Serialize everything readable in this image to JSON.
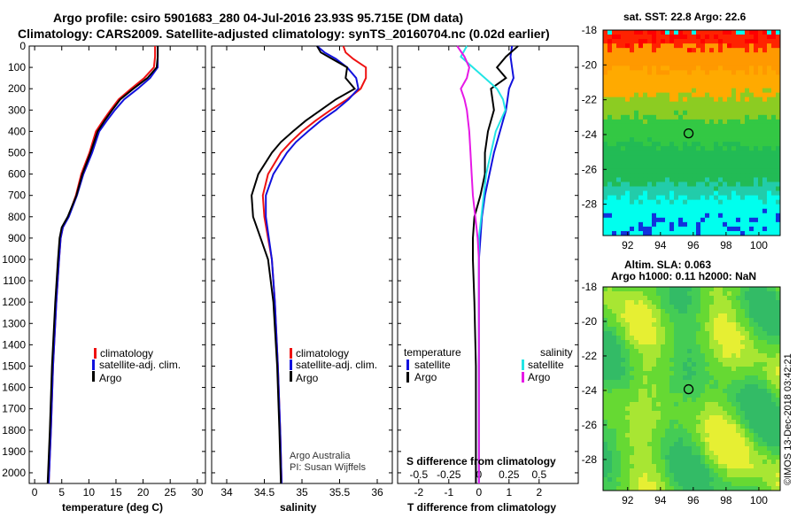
{
  "header": {
    "title_line1": "Argo profile: csiro 5901683_280 04-Jul-2016 23.93S 95.715E (DM data)",
    "title_line2": "Climatology: CARS2009. Satellite-adjusted climatology: synTS_20160704.nc (0.02d earlier)"
  },
  "colors": {
    "climatology": "#ee1111",
    "satellite": "#1111dd",
    "argo": "#000000",
    "sat_cyan": "#22e5e5",
    "argo_magenta": "#e619e6"
  },
  "chart_data": [
    {
      "id": "temperature",
      "type": "line",
      "xlabel": "temperature (deg C)",
      "ylabel": "",
      "xlim": [
        -1,
        31.5
      ],
      "ylim": [
        2050,
        0
      ],
      "xticks": [
        0,
        5,
        10,
        15,
        20,
        25,
        30
      ],
      "yticks": [
        0,
        100,
        200,
        300,
        400,
        500,
        600,
        700,
        800,
        900,
        1000,
        1100,
        1200,
        1300,
        1400,
        1500,
        1600,
        1700,
        1800,
        1900,
        2000
      ],
      "legend": [
        "climatology",
        "satellite-adj. clim.",
        "Argo"
      ],
      "series": [
        {
          "name": "climatology",
          "color": "#ee1111",
          "depth": [
            0,
            50,
            100,
            150,
            200,
            250,
            300,
            350,
            400,
            500,
            600,
            700,
            800,
            850,
            900,
            1000,
            1200,
            1500,
            1800,
            2050
          ],
          "values": [
            22.2,
            22.2,
            22.0,
            20.2,
            17.8,
            15.5,
            14.0,
            12.6,
            11.3,
            10.1,
            8.6,
            7.6,
            6.2,
            5.2,
            4.8,
            4.5,
            4.0,
            3.4,
            3.0,
            2.6
          ]
        },
        {
          "name": "satellite",
          "color": "#1111dd",
          "depth": [
            0,
            50,
            100,
            150,
            200,
            250,
            300,
            350,
            400,
            500,
            600,
            700,
            800,
            850,
            900,
            1000,
            1200,
            1500,
            1800,
            2050
          ],
          "values": [
            22.7,
            22.7,
            22.7,
            21.3,
            19.0,
            16.5,
            14.8,
            13.3,
            11.9,
            10.6,
            9.0,
            7.8,
            6.3,
            5.2,
            4.8,
            4.5,
            4.0,
            3.4,
            3.0,
            2.6
          ]
        },
        {
          "name": "Argo",
          "color": "#000000",
          "depth": [
            0,
            50,
            100,
            150,
            200,
            250,
            300,
            350,
            400,
            500,
            600,
            700,
            800,
            850,
            900,
            1000,
            1200,
            1500,
            1800,
            2050
          ],
          "values": [
            22.7,
            22.7,
            22.5,
            20.8,
            18.2,
            15.8,
            14.3,
            12.9,
            11.6,
            10.3,
            8.8,
            7.7,
            6.1,
            5.0,
            4.6,
            4.3,
            3.8,
            3.2,
            2.8,
            2.4
          ]
        }
      ]
    },
    {
      "id": "salinity",
      "type": "line",
      "xlabel": "salinity",
      "xlim": [
        33.8,
        36.2
      ],
      "ylim": [
        2050,
        0
      ],
      "xticks": [
        34,
        34.5,
        35,
        35.5,
        36
      ],
      "xtick_labels": [
        "34",
        "34.5",
        "35",
        "35.5",
        "36"
      ],
      "legend": [
        "climatology",
        "satellite-adj. clim.",
        "Argo"
      ],
      "credit": [
        "Argo Australia",
        "PI: Susan Wijffels"
      ],
      "series": [
        {
          "name": "climatology",
          "color": "#ee1111",
          "depth": [
            0,
            30,
            60,
            100,
            150,
            200,
            250,
            300,
            350,
            400,
            450,
            500,
            600,
            700,
            800,
            900,
            1000,
            1200,
            1500,
            1800,
            2050
          ],
          "values": [
            35.55,
            35.58,
            35.68,
            35.85,
            35.85,
            35.78,
            35.6,
            35.38,
            35.18,
            35.0,
            34.85,
            34.72,
            34.55,
            34.48,
            34.5,
            34.55,
            34.6,
            34.64,
            34.68,
            34.71,
            34.73
          ]
        },
        {
          "name": "satellite",
          "color": "#1111dd",
          "depth": [
            0,
            30,
            60,
            100,
            150,
            200,
            250,
            300,
            350,
            400,
            450,
            500,
            600,
            700,
            800,
            900,
            1000,
            1200,
            1500,
            1800,
            2050
          ],
          "values": [
            35.2,
            35.3,
            35.45,
            35.6,
            35.72,
            35.75,
            35.62,
            35.45,
            35.25,
            35.08,
            34.92,
            34.8,
            34.62,
            34.52,
            34.52,
            34.56,
            34.6,
            34.64,
            34.68,
            34.71,
            34.73
          ]
        },
        {
          "name": "Argo",
          "color": "#000000",
          "depth": [
            0,
            30,
            60,
            100,
            150,
            200,
            250,
            300,
            350,
            400,
            450,
            500,
            600,
            700,
            800,
            900,
            1000,
            1200,
            1500,
            1800,
            2050
          ],
          "values": [
            35.2,
            35.25,
            35.4,
            35.6,
            35.58,
            35.7,
            35.45,
            35.25,
            35.05,
            34.88,
            34.72,
            34.6,
            34.42,
            34.33,
            34.35,
            34.45,
            34.55,
            34.62,
            34.67,
            34.7,
            34.72
          ]
        }
      ]
    },
    {
      "id": "difference",
      "type": "line",
      "xlabel": "T difference from climatology",
      "top_label": "S difference from climatology",
      "xlim": [
        -2.7,
        3.3
      ],
      "ylim": [
        2050,
        0
      ],
      "xticks": [
        -2,
        -1,
        0,
        1,
        2
      ],
      "top_xticks": [
        -0.5,
        -0.25,
        0,
        0.25,
        0.5
      ],
      "top_xtick_labels": [
        "-0.5",
        "-0.25",
        "0",
        "0.25",
        "0.5"
      ],
      "legend_left_title": "temperature",
      "legend_right_title": "salinity",
      "legend": {
        "t_satellite": "satellite",
        "t_argo": "Argo",
        "s_satellite": "satellite",
        "s_argo": "Argo"
      },
      "series": [
        {
          "name": "T satellite",
          "color": "#1111dd",
          "depth": [
            0,
            50,
            100,
            150,
            200,
            300,
            400,
            500,
            600,
            700,
            800,
            900,
            1000,
            1200,
            1500,
            2050
          ],
          "values": [
            1.1,
            1.05,
            1.1,
            1.15,
            1.0,
            0.9,
            0.7,
            0.5,
            0.35,
            0.2,
            0.1,
            0.05,
            0.0,
            0.0,
            0.0,
            0.0
          ]
        },
        {
          "name": "T Argo",
          "color": "#000000",
          "depth": [
            0,
            50,
            100,
            150,
            200,
            300,
            400,
            500,
            600,
            700,
            800,
            900,
            1000,
            1200,
            1500,
            2050
          ],
          "values": [
            1.3,
            0.9,
            0.6,
            0.9,
            0.4,
            0.5,
            0.3,
            0.2,
            0.2,
            0.05,
            -0.15,
            -0.2,
            -0.2,
            -0.15,
            -0.1,
            -0.1
          ]
        },
        {
          "name": "S satellite",
          "color": "#22e5e5",
          "depth": [
            0,
            50,
            100,
            150,
            200,
            250,
            300,
            400,
            500,
            600,
            700,
            800,
            900,
            1000,
            1200,
            1500,
            2050
          ],
          "values": [
            -0.1,
            -0.15,
            -0.05,
            0.05,
            0.15,
            0.2,
            0.22,
            0.14,
            0.1,
            0.06,
            0.04,
            0.02,
            0.0,
            0.0,
            0.0,
            0.0,
            0.0
          ]
        },
        {
          "name": "S Argo",
          "color": "#e619e6",
          "depth": [
            0,
            50,
            100,
            150,
            200,
            250,
            300,
            400,
            500,
            600,
            700,
            800,
            900,
            1000,
            1200,
            1500,
            2050
          ],
          "values": [
            -0.18,
            -0.12,
            -0.08,
            -0.1,
            -0.15,
            -0.12,
            -0.1,
            -0.08,
            -0.07,
            -0.06,
            -0.05,
            -0.03,
            -0.01,
            0.0,
            0.0,
            0.0,
            0.0
          ]
        }
      ]
    },
    {
      "id": "sst_map",
      "type": "heatmap",
      "title": "sat. SST: 22.8 Argo: 22.6",
      "xlim": [
        90.5,
        101.3
      ],
      "ylim": [
        -29.8,
        -18
      ],
      "xticks": [
        92,
        94,
        96,
        98,
        100
      ],
      "yticks": [
        -18,
        -20,
        -22,
        -24,
        -26,
        -28
      ],
      "marker": {
        "lon": 95.715,
        "lat": -23.93
      },
      "bands": [
        {
          "from_lat": -18.0,
          "to_lat": -19.0,
          "color": "#ff2200"
        },
        {
          "from_lat": -19.0,
          "to_lat": -20.3,
          "color": "#ff9900"
        },
        {
          "from_lat": -20.3,
          "to_lat": -21.8,
          "color": "#ffaa00"
        },
        {
          "from_lat": -21.8,
          "to_lat": -23.0,
          "color": "#8ccc22"
        },
        {
          "from_lat": -23.0,
          "to_lat": -24.6,
          "color": "#33c844"
        },
        {
          "from_lat": -24.6,
          "to_lat": -26.8,
          "color": "#22bb55"
        },
        {
          "from_lat": -26.8,
          "to_lat": -27.6,
          "color": "#22ccaa"
        },
        {
          "from_lat": -27.6,
          "to_lat": -29.8,
          "color": "#00ffee"
        }
      ]
    },
    {
      "id": "sla_map",
      "type": "heatmap",
      "title_line1": "Altim. SLA: 0.063",
      "title_line2": "Argo h1000: 0.11 h2000: NaN",
      "xlim": [
        90.5,
        101.3
      ],
      "ylim": [
        -29.8,
        -18
      ],
      "xticks": [
        92,
        94,
        96,
        98,
        100
      ],
      "yticks": [
        -18,
        -20,
        -22,
        -24,
        -26,
        -28
      ],
      "marker": {
        "lon": 95.715,
        "lat": -23.93
      },
      "base_color": "#66e033"
    }
  ],
  "footer": {
    "stamp": "©IMOS 13-Dec-2018 03:42:21"
  }
}
